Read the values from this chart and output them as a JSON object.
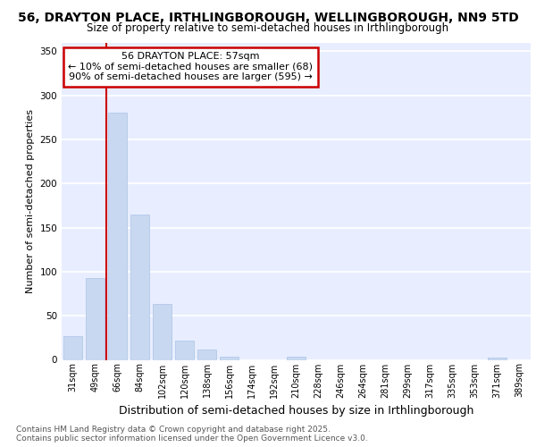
{
  "title1": "56, DRAYTON PLACE, IRTHLINGBOROUGH, WELLINGBOROUGH, NN9 5TD",
  "title2": "Size of property relative to semi-detached houses in Irthlingborough",
  "xlabel": "Distribution of semi-detached houses by size in Irthlingborough",
  "ylabel": "Number of semi-detached properties",
  "categories": [
    "31sqm",
    "49sqm",
    "66sqm",
    "84sqm",
    "102sqm",
    "120sqm",
    "138sqm",
    "156sqm",
    "174sqm",
    "192sqm",
    "210sqm",
    "228sqm",
    "246sqm",
    "264sqm",
    "281sqm",
    "299sqm",
    "317sqm",
    "335sqm",
    "353sqm",
    "371sqm",
    "389sqm"
  ],
  "values": [
    27,
    93,
    280,
    165,
    63,
    22,
    12,
    4,
    0,
    0,
    4,
    0,
    0,
    0,
    0,
    0,
    0,
    0,
    0,
    3,
    0
  ],
  "bar_color": "#c8d8f0",
  "bar_edge_color": "#a0bce0",
  "property_line_x": 1.5,
  "annotation_text": "56 DRAYTON PLACE: 57sqm\n← 10% of semi-detached houses are smaller (68)\n90% of semi-detached houses are larger (595) →",
  "footer": "Contains HM Land Registry data © Crown copyright and database right 2025.\nContains public sector information licensed under the Open Government Licence v3.0.",
  "ylim": [
    0,
    360
  ],
  "yticks": [
    0,
    50,
    100,
    150,
    200,
    250,
    300,
    350
  ],
  "figure_bg": "#ffffff",
  "plot_bg": "#e8eeff",
  "grid_color": "#ffffff",
  "annotation_box_facecolor": "#ffffff",
  "annotation_box_edgecolor": "#cc0000",
  "red_line_color": "#cc0000",
  "title1_fontsize": 10,
  "title2_fontsize": 8.5,
  "ylabel_fontsize": 8,
  "xlabel_fontsize": 9,
  "tick_fontsize": 7,
  "footer_fontsize": 6.5,
  "annotation_fontsize": 8
}
